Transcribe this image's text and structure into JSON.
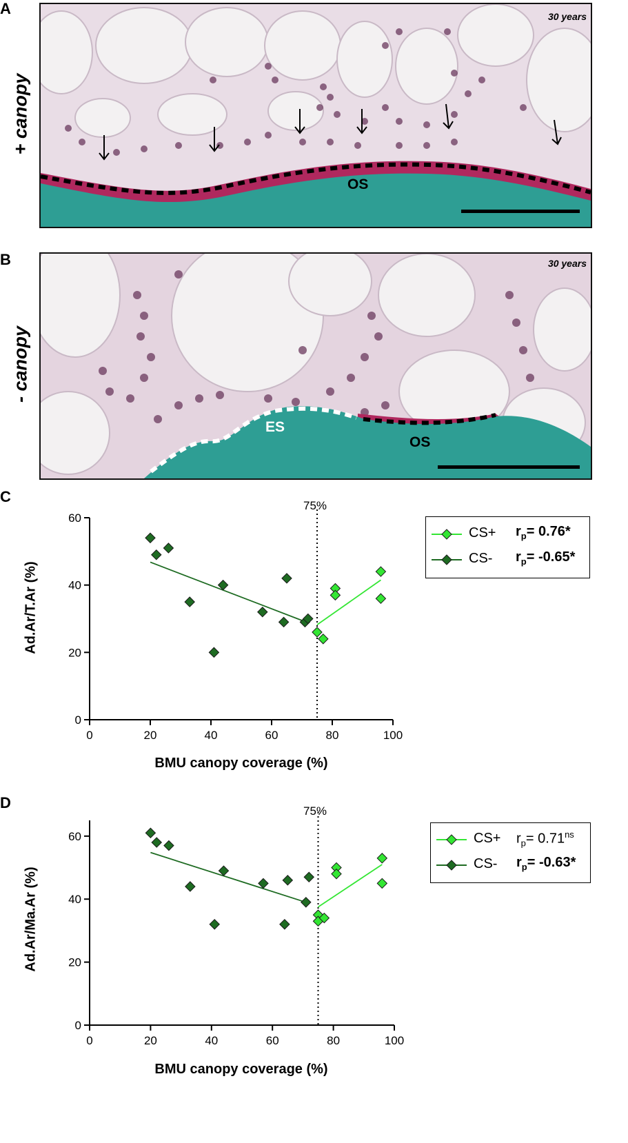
{
  "panels": [
    {
      "letter": "A",
      "side_label": "+ canopy",
      "age_label": "30 years",
      "labels": [
        "OS"
      ]
    },
    {
      "letter": "B",
      "side_label": "- canopy",
      "age_label": "30 years",
      "labels": [
        "ES",
        "OS"
      ]
    }
  ],
  "colors": {
    "cs_plus": "#33e633",
    "cs_minus": "#1e6b22",
    "bone": "#2e9e94",
    "osteoid": "#b0285e",
    "fat": "#f2f0f1",
    "cells": "#6b3a5e"
  },
  "chart_data": [
    {
      "panel": "C",
      "type": "scatter",
      "xlabel": "BMU canopy coverage (%)",
      "ylabel": "Ad.Ar/T.Ar (%)",
      "xlim": [
        0,
        100
      ],
      "ylim": [
        0,
        60
      ],
      "xticks": [
        0,
        20,
        40,
        60,
        80,
        100
      ],
      "yticks": [
        0,
        20,
        40,
        60
      ],
      "threshold": 75,
      "threshold_label": "75%",
      "series": [
        {
          "name": "CS+",
          "r_label": "r",
          "r_sub": "p",
          "r_value": "= 0.76*",
          "r_bold": true,
          "points": [
            [
              75,
              26
            ],
            [
              77,
              24
            ],
            [
              81,
              39
            ],
            [
              81,
              37
            ],
            [
              96,
              44
            ],
            [
              96,
              36
            ]
          ],
          "fit": [
            [
              75,
              28.2
            ],
            [
              96,
              41.5
            ]
          ]
        },
        {
          "name": "CS-",
          "r_label": "r",
          "r_sub": "p",
          "r_value": "= -0.65*",
          "r_bold": true,
          "points": [
            [
              20,
              54
            ],
            [
              22,
              49
            ],
            [
              26,
              51
            ],
            [
              33,
              35
            ],
            [
              41,
              20
            ],
            [
              44,
              40
            ],
            [
              57,
              32
            ],
            [
              64,
              29
            ],
            [
              65,
              42
            ],
            [
              71,
              29
            ],
            [
              72,
              30
            ]
          ],
          "fit": [
            [
              20,
              46.8
            ],
            [
              72,
              28.8
            ]
          ]
        }
      ]
    },
    {
      "panel": "D",
      "type": "scatter",
      "xlabel": "BMU canopy coverage (%)",
      "ylabel": "Ad.Ar/Ma.Ar (%)",
      "xlim": [
        0,
        100
      ],
      "ylim": [
        0,
        65
      ],
      "xticks": [
        0,
        20,
        40,
        60,
        80,
        100
      ],
      "yticks": [
        0,
        20,
        40,
        60
      ],
      "threshold": 75,
      "threshold_label": "75%",
      "series": [
        {
          "name": "CS+",
          "r_label": "r",
          "r_sub": "p",
          "r_value": "= 0.71",
          "r_sup": "ns",
          "r_bold": false,
          "points": [
            [
              75,
              35
            ],
            [
              75,
              33
            ],
            [
              77,
              34
            ],
            [
              81,
              50
            ],
            [
              81,
              48
            ],
            [
              96,
              53
            ],
            [
              96,
              45
            ]
          ],
          "fit": [
            [
              75,
              37.5
            ],
            [
              96,
              51
            ]
          ]
        },
        {
          "name": "CS-",
          "r_label": "r",
          "r_sub": "p",
          "r_value": "= -0.63*",
          "r_bold": true,
          "points": [
            [
              20,
              61
            ],
            [
              22,
              58
            ],
            [
              26,
              57
            ],
            [
              33,
              44
            ],
            [
              41,
              32
            ],
            [
              44,
              49
            ],
            [
              57,
              45
            ],
            [
              64,
              32
            ],
            [
              65,
              46
            ],
            [
              71,
              39
            ],
            [
              72,
              47
            ]
          ],
          "fit": [
            [
              20,
              54.8
            ],
            [
              71,
              39
            ]
          ]
        }
      ]
    }
  ]
}
